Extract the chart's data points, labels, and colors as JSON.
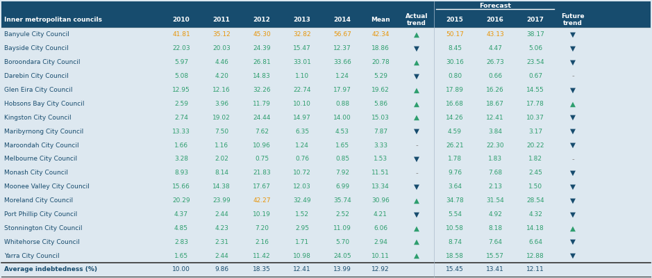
{
  "col_headers": [
    "Inner metropolitan councils",
    "2010",
    "2011",
    "2012",
    "2013",
    "2014",
    "Mean",
    "Actual\ntrend",
    "2015",
    "2016",
    "2017",
    "Future\ntrend"
  ],
  "forecast_label": "Forecast",
  "rows": [
    {
      "name": "Banyule City Council",
      "v2010": "41.81",
      "v2011": "35.12",
      "v2012": "45.30",
      "v2013": "32.82",
      "v2014": "56.67",
      "mean": "42.34",
      "actual": "▲",
      "v2015": "50.17",
      "v2016": "43.13",
      "v2017": "38.17",
      "future": "▼",
      "c2010": "#e8960a",
      "c2011": "#e8960a",
      "c2012": "#e8960a",
      "c2013": "#e8960a",
      "c2014": "#e8960a",
      "cmean": "#e8960a",
      "c2015": "#e8960a",
      "c2016": "#e8960a",
      "c2017": "#2e9e6e",
      "actual_up": true,
      "future_down": true
    },
    {
      "name": "Bayside City Council",
      "v2010": "22.03",
      "v2011": "20.03",
      "v2012": "24.39",
      "v2013": "15.47",
      "v2014": "12.37",
      "mean": "18.86",
      "actual": "▼",
      "v2015": "8.45",
      "v2016": "4.47",
      "v2017": "5.06",
      "future": "▼",
      "c2010": "#2e9e6e",
      "c2011": "#2e9e6e",
      "c2012": "#2e9e6e",
      "c2013": "#2e9e6e",
      "c2014": "#2e9e6e",
      "cmean": "#2e9e6e",
      "c2015": "#2e9e6e",
      "c2016": "#2e9e6e",
      "c2017": "#2e9e6e",
      "actual_up": false,
      "future_down": true
    },
    {
      "name": "Boroondara City Council",
      "v2010": "5.97",
      "v2011": "4.46",
      "v2012": "26.81",
      "v2013": "33.01",
      "v2014": "33.66",
      "mean": "20.78",
      "actual": "▲",
      "v2015": "30.16",
      "v2016": "26.73",
      "v2017": "23.54",
      "future": "▼",
      "c2010": "#2e9e6e",
      "c2011": "#2e9e6e",
      "c2012": "#2e9e6e",
      "c2013": "#2e9e6e",
      "c2014": "#2e9e6e",
      "cmean": "#2e9e6e",
      "c2015": "#2e9e6e",
      "c2016": "#2e9e6e",
      "c2017": "#2e9e6e",
      "actual_up": true,
      "future_down": true
    },
    {
      "name": "Darebin City Council",
      "v2010": "5.08",
      "v2011": "4.20",
      "v2012": "14.83",
      "v2013": "1.10",
      "v2014": "1.24",
      "mean": "5.29",
      "actual": "▼",
      "v2015": "0.80",
      "v2016": "0.66",
      "v2017": "0.67",
      "future": "-",
      "c2010": "#2e9e6e",
      "c2011": "#2e9e6e",
      "c2012": "#2e9e6e",
      "c2013": "#2e9e6e",
      "c2014": "#2e9e6e",
      "cmean": "#2e9e6e",
      "c2015": "#2e9e6e",
      "c2016": "#2e9e6e",
      "c2017": "#2e9e6e",
      "actual_up": false,
      "future_down": null
    },
    {
      "name": "Glen Eira City Council",
      "v2010": "12.95",
      "v2011": "12.16",
      "v2012": "32.26",
      "v2013": "22.74",
      "v2014": "17.97",
      "mean": "19.62",
      "actual": "▲",
      "v2015": "17.89",
      "v2016": "16.26",
      "v2017": "14.55",
      "future": "▼",
      "c2010": "#2e9e6e",
      "c2011": "#2e9e6e",
      "c2012": "#2e9e6e",
      "c2013": "#2e9e6e",
      "c2014": "#2e9e6e",
      "cmean": "#2e9e6e",
      "c2015": "#2e9e6e",
      "c2016": "#2e9e6e",
      "c2017": "#2e9e6e",
      "actual_up": true,
      "future_down": true
    },
    {
      "name": "Hobsons Bay City Council",
      "v2010": "2.59",
      "v2011": "3.96",
      "v2012": "11.79",
      "v2013": "10.10",
      "v2014": "0.88",
      "mean": "5.86",
      "actual": "▲",
      "v2015": "16.68",
      "v2016": "18.67",
      "v2017": "17.78",
      "future": "▲",
      "c2010": "#2e9e6e",
      "c2011": "#2e9e6e",
      "c2012": "#2e9e6e",
      "c2013": "#2e9e6e",
      "c2014": "#2e9e6e",
      "cmean": "#2e9e6e",
      "c2015": "#2e9e6e",
      "c2016": "#2e9e6e",
      "c2017": "#2e9e6e",
      "actual_up": true,
      "future_down": false
    },
    {
      "name": "Kingston City Council",
      "v2010": "2.74",
      "v2011": "19.02",
      "v2012": "24.44",
      "v2013": "14.97",
      "v2014": "14.00",
      "mean": "15.03",
      "actual": "▲",
      "v2015": "14.26",
      "v2016": "12.41",
      "v2017": "10.37",
      "future": "▼",
      "c2010": "#2e9e6e",
      "c2011": "#2e9e6e",
      "c2012": "#2e9e6e",
      "c2013": "#2e9e6e",
      "c2014": "#2e9e6e",
      "cmean": "#2e9e6e",
      "c2015": "#2e9e6e",
      "c2016": "#2e9e6e",
      "c2017": "#2e9e6e",
      "actual_up": true,
      "future_down": true
    },
    {
      "name": "Maribyrnong City Council",
      "v2010": "13.33",
      "v2011": "7.50",
      "v2012": "7.62",
      "v2013": "6.35",
      "v2014": "4.53",
      "mean": "7.87",
      "actual": "▼",
      "v2015": "4.59",
      "v2016": "3.84",
      "v2017": "3.17",
      "future": "▼",
      "c2010": "#2e9e6e",
      "c2011": "#2e9e6e",
      "c2012": "#2e9e6e",
      "c2013": "#2e9e6e",
      "c2014": "#2e9e6e",
      "cmean": "#2e9e6e",
      "c2015": "#2e9e6e",
      "c2016": "#2e9e6e",
      "c2017": "#2e9e6e",
      "actual_up": false,
      "future_down": true
    },
    {
      "name": "Maroondah City Council",
      "v2010": "1.66",
      "v2011": "1.16",
      "v2012": "10.96",
      "v2013": "1.24",
      "v2014": "1.65",
      "mean": "3.33",
      "actual": "-",
      "v2015": "26.21",
      "v2016": "22.30",
      "v2017": "20.22",
      "future": "▼",
      "c2010": "#2e9e6e",
      "c2011": "#2e9e6e",
      "c2012": "#2e9e6e",
      "c2013": "#2e9e6e",
      "c2014": "#2e9e6e",
      "cmean": "#2e9e6e",
      "c2015": "#2e9e6e",
      "c2016": "#2e9e6e",
      "c2017": "#2e9e6e",
      "actual_up": null,
      "future_down": true
    },
    {
      "name": "Melbourne City Council",
      "v2010": "3.28",
      "v2011": "2.02",
      "v2012": "0.75",
      "v2013": "0.76",
      "v2014": "0.85",
      "mean": "1.53",
      "actual": "▼",
      "v2015": "1.78",
      "v2016": "1.83",
      "v2017": "1.82",
      "future": "-",
      "c2010": "#2e9e6e",
      "c2011": "#2e9e6e",
      "c2012": "#2e9e6e",
      "c2013": "#2e9e6e",
      "c2014": "#2e9e6e",
      "cmean": "#2e9e6e",
      "c2015": "#2e9e6e",
      "c2016": "#2e9e6e",
      "c2017": "#2e9e6e",
      "actual_up": false,
      "future_down": null
    },
    {
      "name": "Monash City Council",
      "v2010": "8.93",
      "v2011": "8.14",
      "v2012": "21.83",
      "v2013": "10.72",
      "v2014": "7.92",
      "mean": "11.51",
      "actual": "-",
      "v2015": "9.76",
      "v2016": "7.68",
      "v2017": "2.45",
      "future": "▼",
      "c2010": "#2e9e6e",
      "c2011": "#2e9e6e",
      "c2012": "#2e9e6e",
      "c2013": "#2e9e6e",
      "c2014": "#2e9e6e",
      "cmean": "#2e9e6e",
      "c2015": "#2e9e6e",
      "c2016": "#2e9e6e",
      "c2017": "#2e9e6e",
      "actual_up": null,
      "future_down": true
    },
    {
      "name": "Moonee Valley City Council",
      "v2010": "15.66",
      "v2011": "14.38",
      "v2012": "17.67",
      "v2013": "12.03",
      "v2014": "6.99",
      "mean": "13.34",
      "actual": "▼",
      "v2015": "3.64",
      "v2016": "2.13",
      "v2017": "1.50",
      "future": "▼",
      "c2010": "#2e9e6e",
      "c2011": "#2e9e6e",
      "c2012": "#2e9e6e",
      "c2013": "#2e9e6e",
      "c2014": "#2e9e6e",
      "cmean": "#2e9e6e",
      "c2015": "#2e9e6e",
      "c2016": "#2e9e6e",
      "c2017": "#2e9e6e",
      "actual_up": false,
      "future_down": true
    },
    {
      "name": "Moreland City Council",
      "v2010": "20.29",
      "v2011": "23.99",
      "v2012": "42.27",
      "v2013": "32.49",
      "v2014": "35.74",
      "mean": "30.96",
      "actual": "▲",
      "v2015": "34.78",
      "v2016": "31.54",
      "v2017": "28.54",
      "future": "▼",
      "c2010": "#2e9e6e",
      "c2011": "#2e9e6e",
      "c2012": "#e8960a",
      "c2013": "#2e9e6e",
      "c2014": "#2e9e6e",
      "cmean": "#2e9e6e",
      "c2015": "#2e9e6e",
      "c2016": "#2e9e6e",
      "c2017": "#2e9e6e",
      "actual_up": true,
      "future_down": true
    },
    {
      "name": "Port Phillip City Council",
      "v2010": "4.37",
      "v2011": "2.44",
      "v2012": "10.19",
      "v2013": "1.52",
      "v2014": "2.52",
      "mean": "4.21",
      "actual": "▼",
      "v2015": "5.54",
      "v2016": "4.92",
      "v2017": "4.32",
      "future": "▼",
      "c2010": "#2e9e6e",
      "c2011": "#2e9e6e",
      "c2012": "#2e9e6e",
      "c2013": "#2e9e6e",
      "c2014": "#2e9e6e",
      "cmean": "#2e9e6e",
      "c2015": "#2e9e6e",
      "c2016": "#2e9e6e",
      "c2017": "#2e9e6e",
      "actual_up": false,
      "future_down": true
    },
    {
      "name": "Stonnington City Council",
      "v2010": "4.85",
      "v2011": "4.23",
      "v2012": "7.20",
      "v2013": "2.95",
      "v2014": "11.09",
      "mean": "6.06",
      "actual": "▲",
      "v2015": "10.58",
      "v2016": "8.18",
      "v2017": "14.18",
      "future": "▲",
      "c2010": "#2e9e6e",
      "c2011": "#2e9e6e",
      "c2012": "#2e9e6e",
      "c2013": "#2e9e6e",
      "c2014": "#2e9e6e",
      "cmean": "#2e9e6e",
      "c2015": "#2e9e6e",
      "c2016": "#2e9e6e",
      "c2017": "#2e9e6e",
      "actual_up": true,
      "future_down": false
    },
    {
      "name": "Whitehorse City Council",
      "v2010": "2.83",
      "v2011": "2.31",
      "v2012": "2.16",
      "v2013": "1.71",
      "v2014": "5.70",
      "mean": "2.94",
      "actual": "▲",
      "v2015": "8.74",
      "v2016": "7.64",
      "v2017": "6.64",
      "future": "▼",
      "c2010": "#2e9e6e",
      "c2011": "#2e9e6e",
      "c2012": "#2e9e6e",
      "c2013": "#2e9e6e",
      "c2014": "#2e9e6e",
      "cmean": "#2e9e6e",
      "c2015": "#2e9e6e",
      "c2016": "#2e9e6e",
      "c2017": "#2e9e6e",
      "actual_up": true,
      "future_down": true
    },
    {
      "name": "Yarra City Council",
      "v2010": "1.65",
      "v2011": "2.44",
      "v2012": "11.42",
      "v2013": "10.98",
      "v2014": "24.05",
      "mean": "10.11",
      "actual": "▲",
      "v2015": "18.58",
      "v2016": "15.57",
      "v2017": "12.88",
      "future": "▼",
      "c2010": "#2e9e6e",
      "c2011": "#2e9e6e",
      "c2012": "#2e9e6e",
      "c2013": "#2e9e6e",
      "c2014": "#2e9e6e",
      "cmean": "#2e9e6e",
      "c2015": "#2e9e6e",
      "c2016": "#2e9e6e",
      "c2017": "#2e9e6e",
      "actual_up": true,
      "future_down": true
    }
  ],
  "avg_row": {
    "name": "Average indebtedness (%)",
    "v2010": "10.00",
    "v2011": "9.86",
    "v2012": "18.35",
    "v2013": "12.41",
    "v2014": "13.99",
    "mean": "12.92",
    "v2015": "15.45",
    "v2016": "13.41",
    "v2017": "12.11"
  },
  "header_bg": "#174c6e",
  "header_text": "#ffffff",
  "row_bg": "#dde8f0",
  "avg_bg": "#dde8f0",
  "name_color": "#174c6e",
  "green": "#2e9e6e",
  "orange": "#e8960a",
  "navy": "#174c6e",
  "mid_gray": "#888888"
}
